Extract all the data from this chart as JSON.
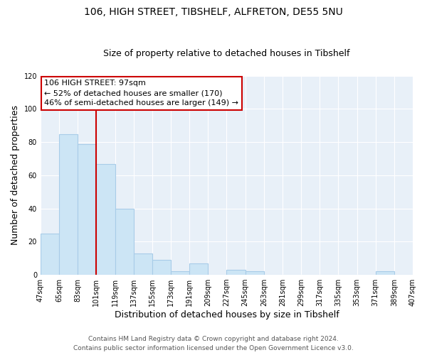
{
  "title": "106, HIGH STREET, TIBSHELF, ALFRETON, DE55 5NU",
  "subtitle": "Size of property relative to detached houses in Tibshelf",
  "xlabel": "Distribution of detached houses by size in Tibshelf",
  "ylabel": "Number of detached properties",
  "bar_edges": [
    47,
    65,
    83,
    101,
    119,
    137,
    155,
    173,
    191,
    209,
    227,
    245,
    263,
    281,
    299,
    317,
    335,
    353,
    371,
    389,
    407
  ],
  "bar_heights": [
    25,
    85,
    79,
    67,
    40,
    13,
    9,
    2,
    7,
    0,
    3,
    2,
    0,
    0,
    0,
    0,
    0,
    0,
    2,
    0
  ],
  "bar_color": "#cce5f5",
  "bar_edge_color": "#a8cce8",
  "vline_x": 101,
  "vline_color": "#cc0000",
  "annotation_title": "106 HIGH STREET: 97sqm",
  "annotation_line2": "← 52% of detached houses are smaller (170)",
  "annotation_line3": "46% of semi-detached houses are larger (149) →",
  "annotation_box_color": "#ffffff",
  "annotation_box_edge": "#cc0000",
  "ylim": [
    0,
    120
  ],
  "yticks": [
    0,
    20,
    40,
    60,
    80,
    100,
    120
  ],
  "tick_labels": [
    "47sqm",
    "65sqm",
    "83sqm",
    "101sqm",
    "119sqm",
    "137sqm",
    "155sqm",
    "173sqm",
    "191sqm",
    "209sqm",
    "227sqm",
    "245sqm",
    "263sqm",
    "281sqm",
    "299sqm",
    "317sqm",
    "335sqm",
    "353sqm",
    "371sqm",
    "389sqm",
    "407sqm"
  ],
  "footer_line1": "Contains HM Land Registry data © Crown copyright and database right 2024.",
  "footer_line2": "Contains public sector information licensed under the Open Government Licence v3.0.",
  "background_color": "#ffffff",
  "plot_bg_color": "#e8f0f8",
  "grid_color": "#ffffff",
  "title_fontsize": 10,
  "subtitle_fontsize": 9,
  "axis_label_fontsize": 9,
  "tick_fontsize": 7,
  "footer_fontsize": 6.5,
  "annotation_fontsize": 8
}
